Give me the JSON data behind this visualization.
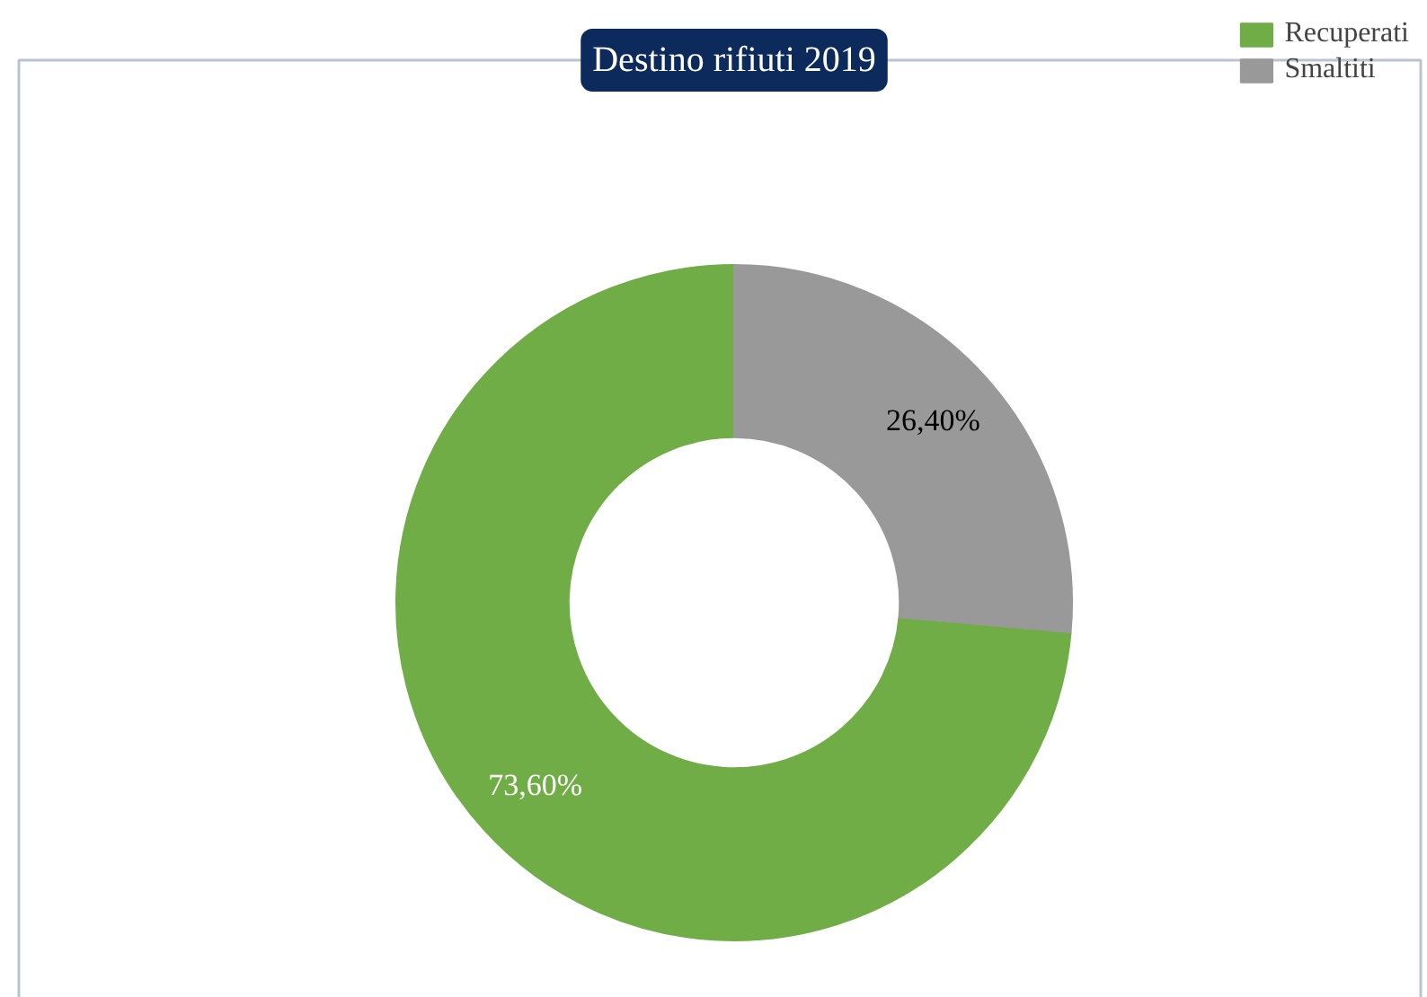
{
  "chart_data": {
    "type": "donut",
    "title": "Destino rifiuti 2019",
    "categories": [
      "Recuperati",
      "Smaltiti"
    ],
    "values": [
      73.6,
      26.4
    ],
    "colors": [
      "#70ad47",
      "#999999"
    ],
    "value_labels": [
      "73,60%",
      "26,40%"
    ],
    "legend": "top right"
  }
}
